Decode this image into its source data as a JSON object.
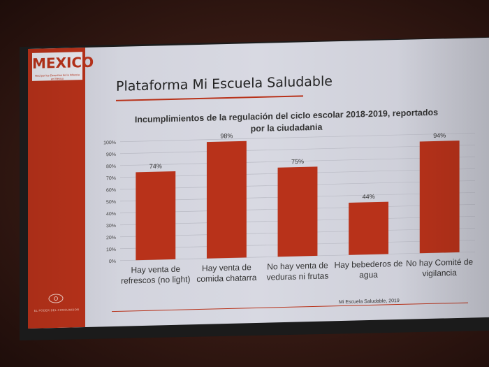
{
  "logo": {
    "text": "MEXICO",
    "subtitle": "Red por los Derechos de la Infancia en México"
  },
  "sidebar": {
    "footer": "EL PODER DEL CONSUMIDOR"
  },
  "slide": {
    "title": "Plataforma Mi Escuela Saludable"
  },
  "footer": {
    "source": "Mi Escuela Saludable, 2019"
  },
  "colors": {
    "bar": "#b8321a",
    "accent": "#b8321a",
    "slide_bg": "#d4d5de"
  },
  "chart_data": {
    "type": "bar",
    "title_line1": "Incumplimientos de la regulación del ciclo escolar 2018-2019, reportados",
    "title_line2": "por la ciudadania",
    "categories": [
      [
        "Hay venta de",
        "refrescos (no light)"
      ],
      [
        "Hay venta de",
        "comida chatarra"
      ],
      [
        "No hay venta de",
        "veduras ni frutas"
      ],
      [
        "Hay bebederos de",
        "agua"
      ],
      [
        "No hay Comité de",
        "vigilancia"
      ]
    ],
    "values": [
      74,
      98,
      75,
      44,
      94
    ],
    "value_labels": [
      "74%",
      "98%",
      "75%",
      "44%",
      "94%"
    ],
    "ylim": [
      0,
      100
    ],
    "yticks": [
      "0%",
      "10%",
      "20%",
      "30%",
      "40%",
      "50%",
      "60%",
      "70%",
      "80%",
      "90%",
      "100%"
    ],
    "grid": true
  }
}
